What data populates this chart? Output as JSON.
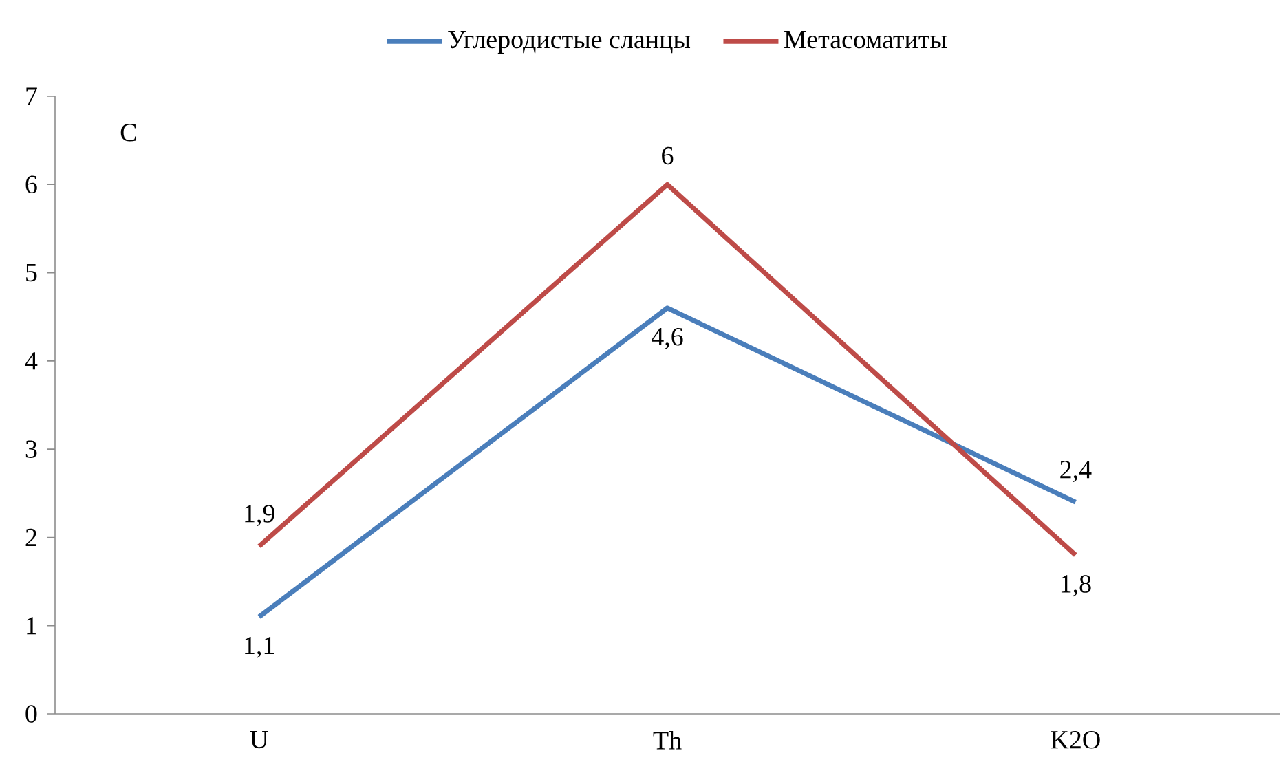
{
  "chart_data": {
    "type": "line",
    "ylabel": "C",
    "categories": [
      "U",
      "Th",
      "K2O"
    ],
    "series": [
      {
        "name": "Углеродистые сланцы",
        "color": "#4a7ebb",
        "values": [
          1.1,
          4.6,
          2.4
        ],
        "value_labels": [
          "1,1",
          "4,6",
          "2,4"
        ]
      },
      {
        "name": "Метасоматиты",
        "color": "#be4b48",
        "values": [
          1.9,
          6,
          1.8
        ],
        "value_labels": [
          "1,9",
          "6",
          "1,8"
        ]
      }
    ],
    "ylim": [
      0,
      7
    ],
    "yticks": [
      0,
      1,
      2,
      3,
      4,
      5,
      6,
      7
    ],
    "grid": false,
    "legend": "top",
    "marker": "none",
    "line_style": "solid"
  }
}
